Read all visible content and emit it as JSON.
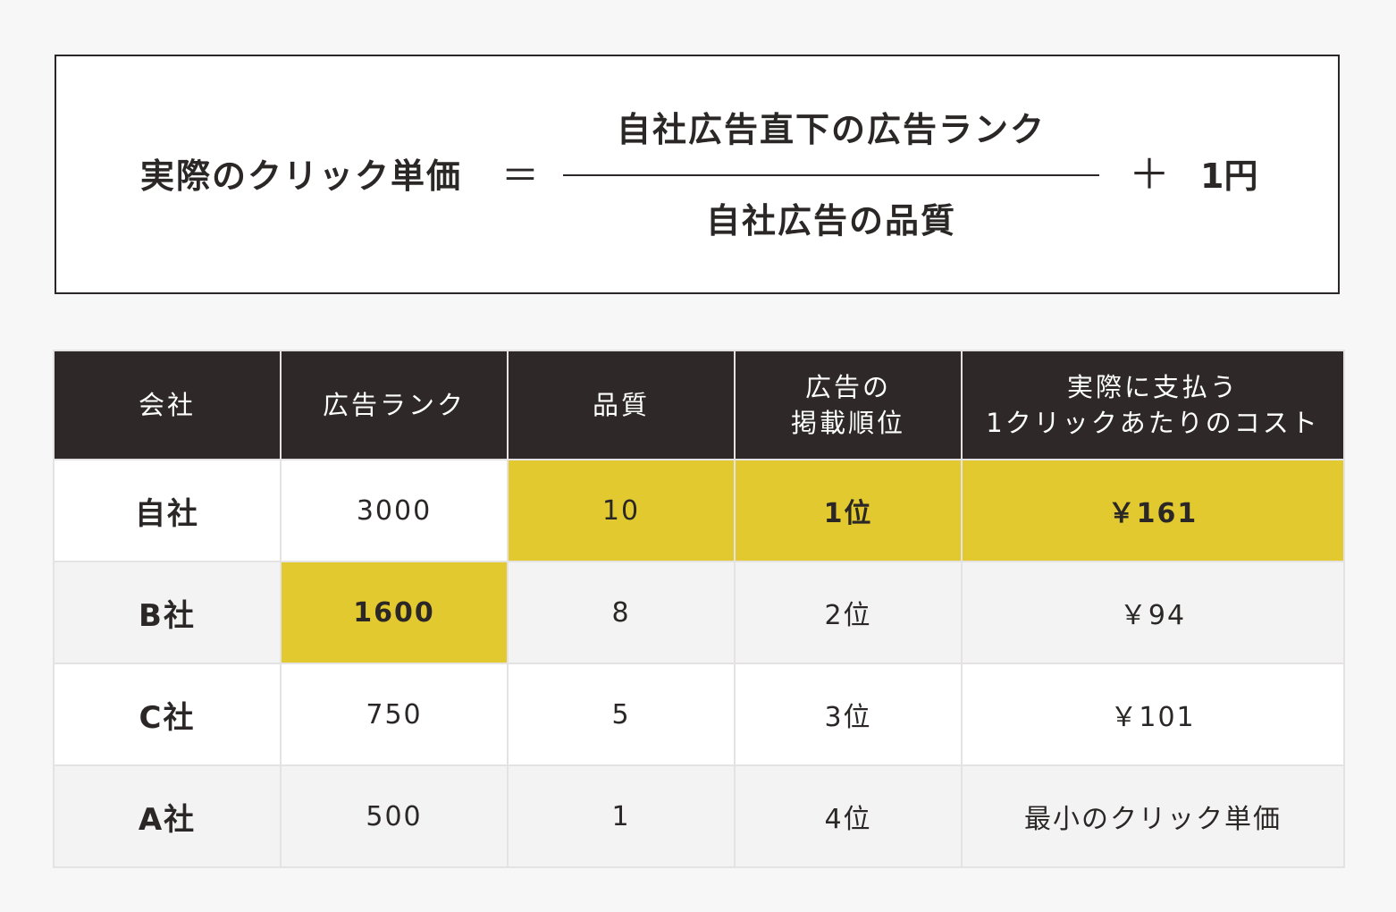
{
  "formula": {
    "lhs": "実際のクリック単価",
    "equals": "＝",
    "numerator": "自社広告直下の広告ランク",
    "denominator": "自社広告の品質",
    "plus": "＋",
    "constant": "1円"
  },
  "table": {
    "headers": {
      "company": "会社",
      "rank": "広告ランク",
      "quality": "品質",
      "position_line1": "広告の",
      "position_line2": "掲載順位",
      "cost_line1": "実際に支払う",
      "cost_line2": "1クリックあたりのコスト"
    },
    "rows": [
      {
        "company": "自社",
        "rank": "3000",
        "quality": "10",
        "position": "1位",
        "cost": "￥161"
      },
      {
        "company": "B社",
        "rank": "1600",
        "quality": "8",
        "position": "2位",
        "cost": "￥94"
      },
      {
        "company": "C社",
        "rank": "750",
        "quality": "5",
        "position": "3位",
        "cost": "￥101"
      },
      {
        "company": "A社",
        "rank": "500",
        "quality": "1",
        "position": "4位",
        "cost": "最小のクリック単価"
      }
    ],
    "highlight_color": "#e2c92f",
    "header_color": "#2e2828"
  }
}
